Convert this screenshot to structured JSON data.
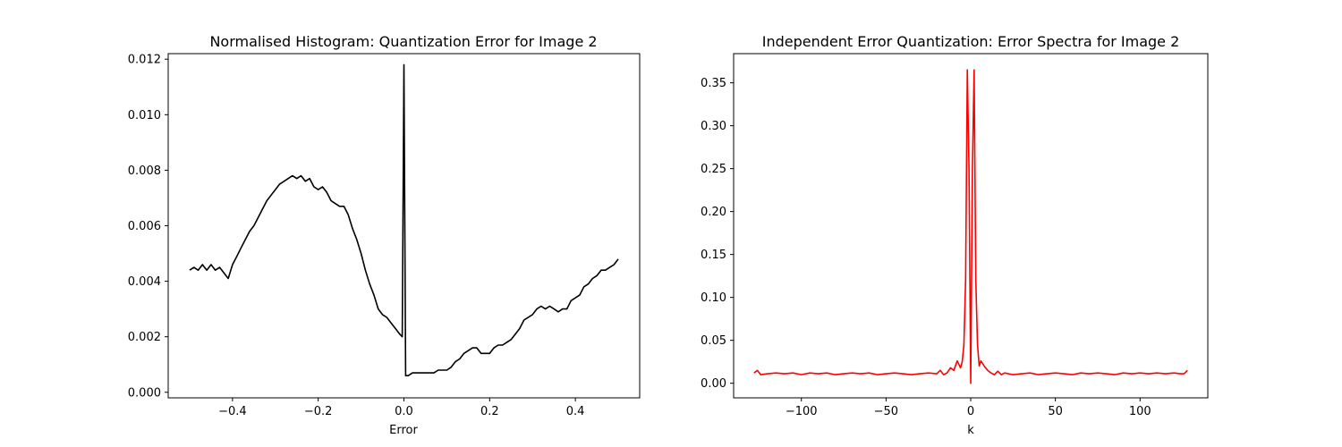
{
  "chart_data": [
    {
      "type": "line",
      "title": "Normalised Histogram: Quantization Error for Image 2",
      "xlabel": "Error",
      "ylabel": "",
      "xlim": [
        -0.55,
        0.55
      ],
      "ylim": [
        -0.0002,
        0.0122
      ],
      "xticks": [
        -0.4,
        -0.2,
        0.0,
        0.2,
        0.4
      ],
      "xtick_labels": [
        "−0.4",
        "−0.2",
        "0.0",
        "0.2",
        "0.4"
      ],
      "yticks": [
        0.0,
        0.002,
        0.004,
        0.006,
        0.008,
        0.01,
        0.012
      ],
      "ytick_labels": [
        "0.000",
        "0.002",
        "0.004",
        "0.006",
        "0.008",
        "0.010",
        "0.012"
      ],
      "grid": false,
      "series": [
        {
          "color": "#000000",
          "x": [
            -0.5,
            -0.49,
            -0.48,
            -0.47,
            -0.46,
            -0.45,
            -0.44,
            -0.43,
            -0.42,
            -0.41,
            -0.4,
            -0.39,
            -0.38,
            -0.37,
            -0.36,
            -0.35,
            -0.34,
            -0.33,
            -0.32,
            -0.31,
            -0.3,
            -0.29,
            -0.28,
            -0.27,
            -0.26,
            -0.25,
            -0.24,
            -0.23,
            -0.22,
            -0.21,
            -0.2,
            -0.19,
            -0.18,
            -0.17,
            -0.16,
            -0.15,
            -0.14,
            -0.13,
            -0.12,
            -0.11,
            -0.1,
            -0.09,
            -0.08,
            -0.07,
            -0.06,
            -0.05,
            -0.04,
            -0.03,
            -0.02,
            -0.01,
            -0.004,
            0.0,
            0.004,
            0.01,
            0.02,
            0.03,
            0.04,
            0.05,
            0.06,
            0.07,
            0.08,
            0.09,
            0.1,
            0.11,
            0.12,
            0.13,
            0.14,
            0.15,
            0.16,
            0.17,
            0.18,
            0.19,
            0.2,
            0.21,
            0.22,
            0.23,
            0.24,
            0.25,
            0.26,
            0.27,
            0.28,
            0.29,
            0.3,
            0.31,
            0.32,
            0.33,
            0.34,
            0.35,
            0.36,
            0.37,
            0.38,
            0.39,
            0.4,
            0.41,
            0.42,
            0.43,
            0.44,
            0.45,
            0.46,
            0.47,
            0.48,
            0.49,
            0.5
          ],
          "y": [
            0.0044,
            0.0045,
            0.0044,
            0.0046,
            0.0044,
            0.0046,
            0.0044,
            0.0045,
            0.0043,
            0.0041,
            0.0046,
            0.0049,
            0.0052,
            0.0055,
            0.0058,
            0.006,
            0.0063,
            0.0066,
            0.0069,
            0.0071,
            0.0073,
            0.0075,
            0.0076,
            0.0077,
            0.0078,
            0.0077,
            0.0078,
            0.0076,
            0.0077,
            0.0074,
            0.0073,
            0.0074,
            0.0072,
            0.0069,
            0.0068,
            0.0067,
            0.0067,
            0.0064,
            0.0059,
            0.0055,
            0.005,
            0.0044,
            0.0039,
            0.0035,
            0.003,
            0.0028,
            0.0027,
            0.0025,
            0.0023,
            0.0021,
            0.002,
            0.0118,
            0.0006,
            0.0006,
            0.0007,
            0.0007,
            0.0007,
            0.0007,
            0.0007,
            0.0007,
            0.0008,
            0.0008,
            0.0008,
            0.0009,
            0.0011,
            0.0012,
            0.0014,
            0.0015,
            0.0016,
            0.0016,
            0.0014,
            0.0014,
            0.0014,
            0.0016,
            0.0017,
            0.0017,
            0.0018,
            0.0019,
            0.0021,
            0.0023,
            0.0026,
            0.0027,
            0.0028,
            0.003,
            0.0031,
            0.003,
            0.0031,
            0.003,
            0.0029,
            0.003,
            0.003,
            0.0033,
            0.0034,
            0.0035,
            0.0038,
            0.0039,
            0.0041,
            0.0042,
            0.0044,
            0.0044,
            0.0045,
            0.0046,
            0.0048
          ]
        }
      ]
    },
    {
      "type": "line",
      "title": "Independent Error Quantization: Error Spectra for Image 2",
      "xlabel": "k",
      "ylabel": "",
      "xlim": [
        -140,
        140
      ],
      "ylim": [
        -0.017,
        0.384
      ],
      "xticks": [
        -100,
        -50,
        0,
        50,
        100
      ],
      "xtick_labels": [
        "−100",
        "−50",
        "0",
        "50",
        "100"
      ],
      "yticks": [
        0.0,
        0.05,
        0.1,
        0.15,
        0.2,
        0.25,
        0.3,
        0.35
      ],
      "ytick_labels": [
        "0.00",
        "0.05",
        "0.10",
        "0.15",
        "0.20",
        "0.25",
        "0.30",
        "0.35"
      ],
      "grid": false,
      "series": [
        {
          "color": "#ff0000",
          "x": [
            -128,
            -126,
            -124,
            -120,
            -115,
            -110,
            -105,
            -100,
            -95,
            -90,
            -85,
            -80,
            -75,
            -70,
            -65,
            -60,
            -55,
            -50,
            -45,
            -40,
            -35,
            -30,
            -25,
            -20,
            -18,
            -16,
            -14,
            -12,
            -10,
            -8,
            -6,
            -5,
            -4,
            -3,
            -2,
            -1,
            0,
            1,
            2,
            3,
            4,
            5,
            6,
            8,
            10,
            12,
            14,
            16,
            18,
            20,
            25,
            30,
            35,
            40,
            45,
            50,
            55,
            60,
            65,
            70,
            75,
            80,
            85,
            90,
            95,
            100,
            105,
            110,
            115,
            120,
            124,
            126,
            128
          ],
          "y": [
            0.012,
            0.015,
            0.01,
            0.011,
            0.012,
            0.011,
            0.012,
            0.01,
            0.012,
            0.011,
            0.012,
            0.01,
            0.011,
            0.012,
            0.011,
            0.012,
            0.01,
            0.011,
            0.012,
            0.011,
            0.01,
            0.011,
            0.012,
            0.011,
            0.015,
            0.01,
            0.012,
            0.018,
            0.015,
            0.026,
            0.018,
            0.025,
            0.045,
            0.12,
            0.365,
            0.25,
            0.0,
            0.25,
            0.365,
            0.12,
            0.045,
            0.02,
            0.026,
            0.02,
            0.015,
            0.012,
            0.01,
            0.014,
            0.01,
            0.012,
            0.01,
            0.011,
            0.012,
            0.01,
            0.011,
            0.012,
            0.011,
            0.01,
            0.012,
            0.011,
            0.012,
            0.011,
            0.01,
            0.012,
            0.011,
            0.012,
            0.011,
            0.012,
            0.011,
            0.012,
            0.011,
            0.011,
            0.015
          ]
        }
      ]
    }
  ]
}
